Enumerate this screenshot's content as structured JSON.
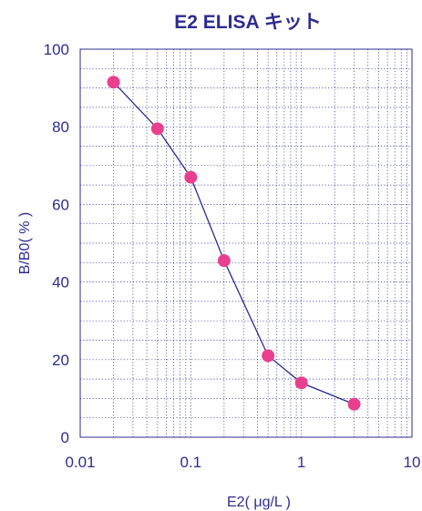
{
  "chart_data": {
    "type": "line",
    "title": "E2 ELISA キット",
    "xlabel": "E2( μg/L )",
    "ylabel": "B/B0( % )",
    "x_scale": "log",
    "xlim": [
      0.01,
      10
    ],
    "ylim": [
      0,
      100
    ],
    "x_tick_labels": [
      "0.01",
      "0.1",
      "1",
      "10"
    ],
    "y_tick_labels": [
      "0",
      "20",
      "40",
      "60",
      "80",
      "100"
    ],
    "grid": true,
    "series": [
      {
        "x": [
          0.02,
          0.05,
          0.1,
          0.2,
          0.5,
          1,
          3
        ],
        "y": [
          91.5,
          79.5,
          67,
          45.5,
          21,
          14,
          8.5
        ]
      }
    ]
  },
  "colors": {
    "text": "#2d2d8f",
    "line": "#2d2d8f",
    "marker": "#e8408f",
    "grid": "#2d2d8f",
    "frame": "#2d2d8f"
  }
}
